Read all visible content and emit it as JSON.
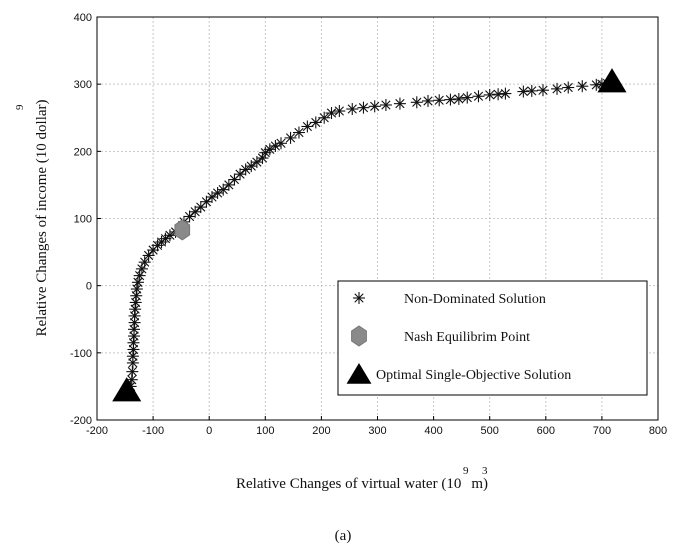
{
  "chart_data": {
    "type": "scatter",
    "xlabel_main": "Relative Changes of virtual water (10",
    "xlabel_unit": "m",
    "xlabel_close": ")",
    "xlabel_exp1": "9",
    "xlabel_exp2": "3",
    "ylabel_main": "Relative Changes of income (10 dollar)",
    "ylabel_exp": "9",
    "xlim": [
      -200,
      800
    ],
    "ylim": [
      -200,
      400
    ],
    "xticks": [
      "-200",
      "-100",
      "0",
      "100",
      "200",
      "300",
      "400",
      "500",
      "600",
      "700",
      "800"
    ],
    "yticks": [
      "-200",
      "-100",
      "0",
      "100",
      "200",
      "300",
      "400"
    ],
    "grid": true,
    "legend_position": "bottom-right",
    "legend": [
      {
        "label": "Non-Dominated Solution",
        "marker": "asterisk"
      },
      {
        "label": "Nash Equilibrim Point",
        "marker": "hexagon"
      },
      {
        "label": "Optimal Single-Objective Solution",
        "marker": "triangle"
      }
    ],
    "series": [
      {
        "name": "Non-Dominated Solution",
        "marker": "asterisk",
        "points": [
          [
            -140,
            -150
          ],
          [
            -138,
            -140
          ],
          [
            -137,
            -128
          ],
          [
            -136,
            -115
          ],
          [
            -136,
            -105
          ],
          [
            -135,
            -95
          ],
          [
            -135,
            -85
          ],
          [
            -134,
            -75
          ],
          [
            -134,
            -65
          ],
          [
            -133,
            -55
          ],
          [
            -133,
            -45
          ],
          [
            -132,
            -35
          ],
          [
            -131,
            -25
          ],
          [
            -130,
            -15
          ],
          [
            -129,
            -5
          ],
          [
            -127,
            5
          ],
          [
            -124,
            15
          ],
          [
            -120,
            25
          ],
          [
            -115,
            35
          ],
          [
            -108,
            45
          ],
          [
            -100,
            53
          ],
          [
            -92,
            60
          ],
          [
            -85,
            65
          ],
          [
            -78,
            70
          ],
          [
            -70,
            75
          ],
          [
            -60,
            80
          ],
          [
            -45,
            95
          ],
          [
            -35,
            103
          ],
          [
            -25,
            110
          ],
          [
            -15,
            117
          ],
          [
            -5,
            125
          ],
          [
            5,
            132
          ],
          [
            15,
            138
          ],
          [
            25,
            143
          ],
          [
            35,
            150
          ],
          [
            45,
            158
          ],
          [
            55,
            166
          ],
          [
            65,
            173
          ],
          [
            75,
            178
          ],
          [
            85,
            184
          ],
          [
            95,
            190
          ],
          [
            100,
            198
          ],
          [
            108,
            203
          ],
          [
            118,
            208
          ],
          [
            128,
            212
          ],
          [
            145,
            220
          ],
          [
            160,
            228
          ],
          [
            175,
            237
          ],
          [
            190,
            243
          ],
          [
            205,
            250
          ],
          [
            218,
            257
          ],
          [
            232,
            260
          ],
          [
            255,
            263
          ],
          [
            275,
            265
          ],
          [
            295,
            267
          ],
          [
            315,
            269
          ],
          [
            340,
            271
          ],
          [
            370,
            273
          ],
          [
            390,
            275
          ],
          [
            410,
            276
          ],
          [
            430,
            277
          ],
          [
            445,
            278
          ],
          [
            460,
            280
          ],
          [
            480,
            282
          ],
          [
            500,
            284
          ],
          [
            515,
            285
          ],
          [
            528,
            286
          ],
          [
            560,
            289
          ],
          [
            575,
            290
          ],
          [
            595,
            291
          ],
          [
            620,
            293
          ],
          [
            640,
            295
          ],
          [
            665,
            297
          ],
          [
            690,
            299
          ],
          [
            700,
            300
          ],
          [
            710,
            301
          ]
        ]
      },
      {
        "name": "Nash Equilibrim Point",
        "marker": "hexagon",
        "points": [
          [
            -48,
            83
          ]
        ]
      },
      {
        "name": "Optimal Single-Objective Solution",
        "marker": "triangle",
        "points": [
          [
            -147,
            -157
          ],
          [
            718,
            303
          ]
        ]
      }
    ],
    "caption": "(a)"
  }
}
